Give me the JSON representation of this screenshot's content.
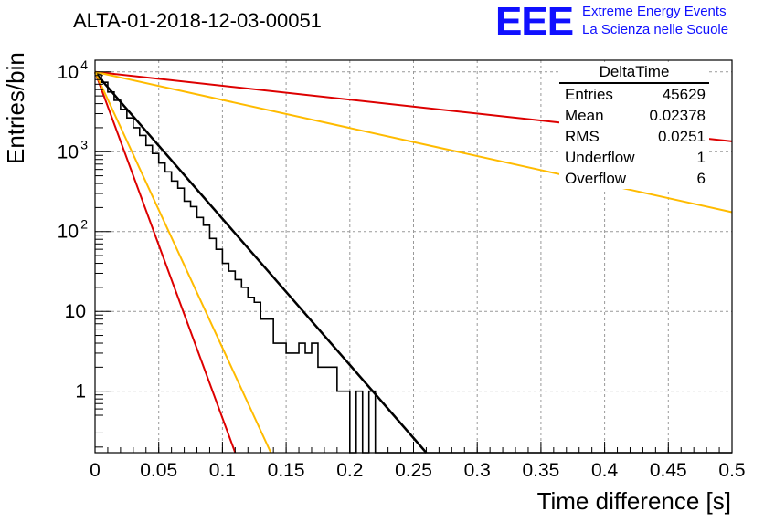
{
  "header": {
    "title": "ALTA-01-2018-12-03-00051",
    "logo_text": "EEE",
    "logo_line1": "Extreme Energy Events",
    "logo_line2": "La Scienza nelle Scuole",
    "logo_color": "#1010ff"
  },
  "stats_box": {
    "title": "DeltaTime",
    "rows": [
      {
        "label": "Entries",
        "value": "45629"
      },
      {
        "label": "Mean",
        "value": "0.02378"
      },
      {
        "label": "RMS",
        "value": "0.0251"
      },
      {
        "label": "Underflow",
        "value": "1"
      },
      {
        "label": "Overflow",
        "value": "6"
      }
    ]
  },
  "chart_data": {
    "type": "line",
    "title": "ALTA-01-2018-12-03-00051",
    "xlabel": "Time difference [s]",
    "ylabel": "Entries/bin",
    "xlim": [
      0,
      0.5
    ],
    "ylim": [
      0.17,
      14000
    ],
    "yscale": "log",
    "grid": true,
    "x_ticks": [
      "0",
      "0.05",
      "0.1",
      "0.15",
      "0.2",
      "0.25",
      "0.3",
      "0.35",
      "0.4",
      "0.45",
      "0.5"
    ],
    "y_ticks": [
      {
        "value": 1,
        "label": "1"
      },
      {
        "value": 10,
        "label": "10"
      },
      {
        "value": 100,
        "label": "10",
        "exp": "2"
      },
      {
        "value": 1000,
        "label": "10",
        "exp": "3"
      },
      {
        "value": 10000,
        "label": "10",
        "exp": "4"
      }
    ],
    "histogram": {
      "name": "DeltaTime",
      "bin_width": 0.005,
      "color": "#000000",
      "counts": [
        9400,
        7400,
        5600,
        4400,
        3400,
        2650,
        2000,
        1600,
        1200,
        950,
        720,
        560,
        430,
        350,
        240,
        205,
        150,
        120,
        82,
        60,
        40,
        32,
        25,
        20,
        15,
        13,
        8,
        8,
        4,
        4,
        3,
        3,
        4,
        3,
        4,
        2,
        2,
        2,
        1,
        1,
        0,
        1,
        0,
        1,
        0,
        0,
        0,
        0,
        0,
        0,
        0,
        0,
        0,
        0,
        0,
        0,
        0,
        0,
        0,
        0,
        0,
        0,
        0,
        0,
        0,
        0,
        0,
        0,
        0,
        0,
        0,
        0,
        0,
        0,
        0,
        0,
        0,
        0,
        0,
        0,
        0,
        0,
        0,
        0,
        0,
        0,
        0,
        0,
        0,
        0,
        0,
        0,
        0,
        0,
        0,
        0,
        0,
        0,
        0,
        0
      ]
    },
    "series": [
      {
        "color": "#000000",
        "x": [
          0,
          0.26
        ],
        "y": [
          9800,
          0.17
        ]
      },
      {
        "color": "#dd0000",
        "x": [
          0,
          0.5
        ],
        "y": [
          10000,
          1350
        ]
      },
      {
        "color": "#dd0000",
        "x": [
          0,
          0.11
        ],
        "y": [
          10000,
          0.17
        ]
      },
      {
        "color": "#ffbb00",
        "x": [
          0,
          0.5
        ],
        "y": [
          10000,
          175
        ]
      },
      {
        "color": "#ffbb00",
        "x": [
          0,
          0.138
        ],
        "y": [
          10000,
          0.17
        ]
      }
    ]
  }
}
